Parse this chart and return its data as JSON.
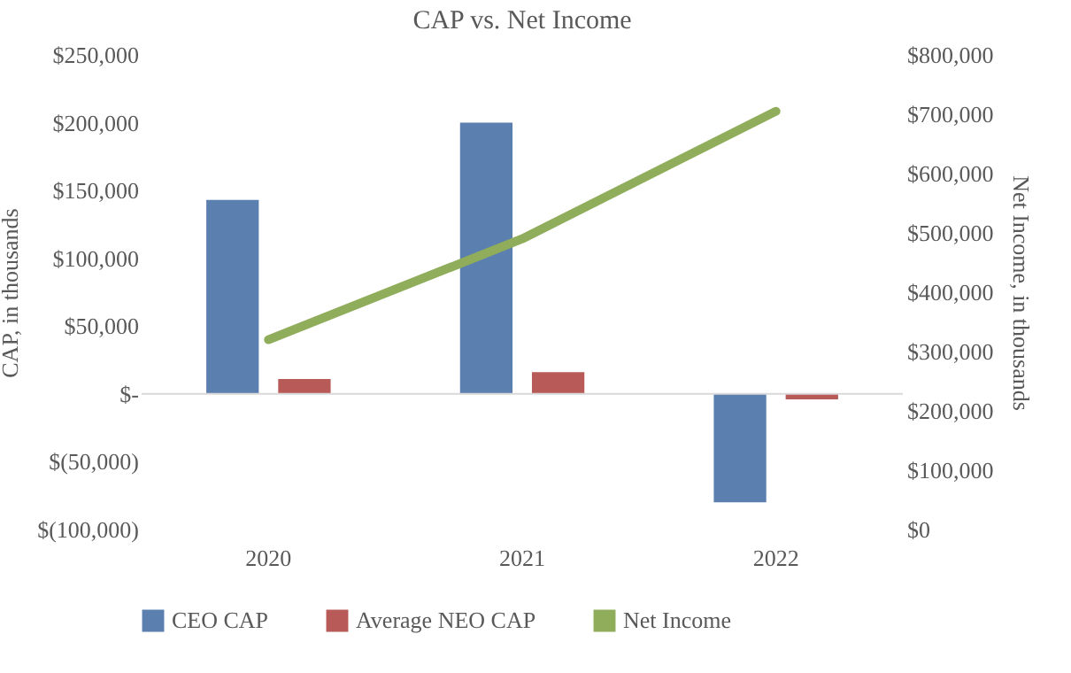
{
  "chart_data": {
    "type": "bar",
    "title": "CAP vs. Net Income",
    "ylabel": "CAP, in thousands",
    "y2label": "Net Income, in thousands",
    "categories": [
      "2020",
      "2021",
      "2022"
    ],
    "series": [
      {
        "name": "CEO CAP",
        "color": "#5b7fae",
        "values": [
          143000,
          200000,
          -80000
        ]
      },
      {
        "name": "Average NEO CAP",
        "color": "#b85b58",
        "values": [
          11000,
          16000,
          -4000
        ]
      },
      {
        "name": "Net Income",
        "type": "line",
        "axis": "y2",
        "color": "#8fad5a",
        "values": [
          320000,
          490000,
          705000
        ]
      }
    ],
    "ylim": [
      -100000,
      250000
    ],
    "yticks": [
      {
        "value": -100000,
        "label": "$(100,000)"
      },
      {
        "value": -50000,
        "label": "$(50,000)"
      },
      {
        "value": 0,
        "label": "$-"
      },
      {
        "value": 50000,
        "label": "$50,000"
      },
      {
        "value": 100000,
        "label": "$100,000"
      },
      {
        "value": 150000,
        "label": "$150,000"
      },
      {
        "value": 200000,
        "label": "$200,000"
      },
      {
        "value": 250000,
        "label": "$250,000"
      }
    ],
    "y2lim": [
      0,
      800000
    ],
    "y2ticks": [
      {
        "value": 0,
        "label": "$0"
      },
      {
        "value": 100000,
        "label": "$100,000"
      },
      {
        "value": 200000,
        "label": "$200,000"
      },
      {
        "value": 300000,
        "label": "$300,000"
      },
      {
        "value": 400000,
        "label": "$400,000"
      },
      {
        "value": 500000,
        "label": "$500,000"
      },
      {
        "value": 600000,
        "label": "$600,000"
      },
      {
        "value": 700000,
        "label": "$700,000"
      },
      {
        "value": 800000,
        "label": "$800,000"
      }
    ],
    "ref_lines": [
      {
        "axis": "y",
        "value": 0,
        "color": "#d9d9d9"
      }
    ],
    "legend": "bottom",
    "grid": false
  }
}
